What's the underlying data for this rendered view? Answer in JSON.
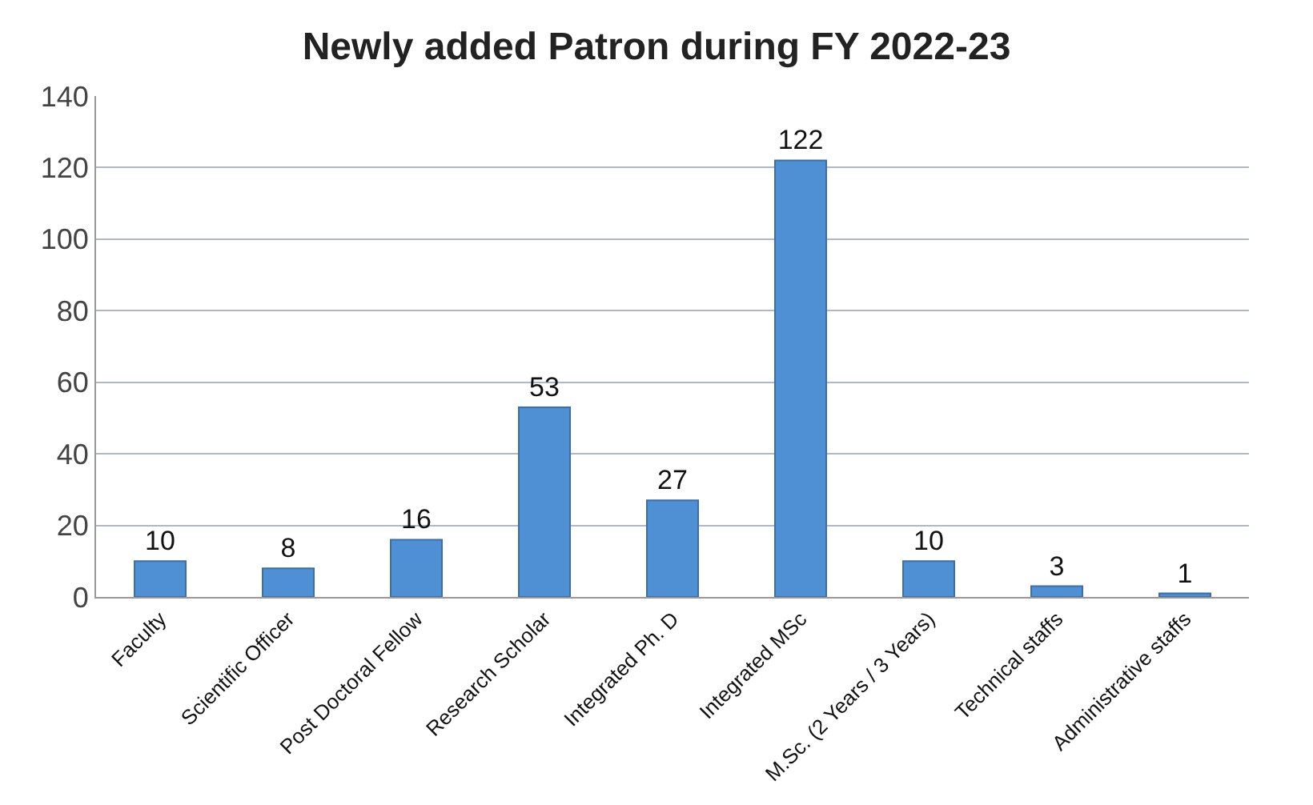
{
  "chart_data": {
    "type": "bar",
    "title": "Newly added Patron during FY 2022-23",
    "categories": [
      "Faculty",
      "Scientific Officer",
      "Post Doctoral Fellow",
      "Research Scholar",
      "Integrated Ph. D",
      "Integrated MSc",
      "M.Sc. (2 Years / 3 Years)",
      "Technical staffs",
      "Administrative staffs"
    ],
    "series": [
      {
        "color": "#4f8fd4",
        "values": [
          10,
          8,
          16,
          53,
          27,
          122,
          10,
          3,
          1
        ]
      }
    ],
    "ylim": [
      0,
      140
    ],
    "yticks": [
      0,
      20,
      40,
      60,
      80,
      100,
      120,
      140
    ],
    "grid": "y",
    "data_labels": true,
    "legend": false
  }
}
